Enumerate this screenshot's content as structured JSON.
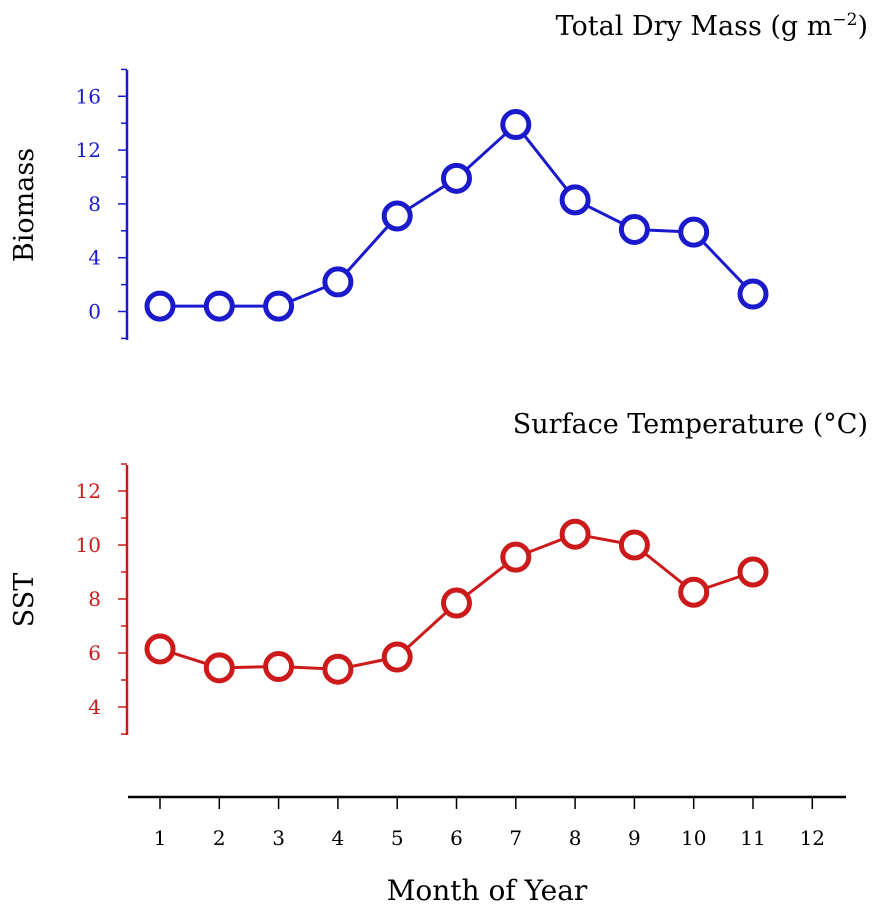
{
  "colors": {
    "biomass": "#1a1acc",
    "sst": "#cc1a1a",
    "axis": "#000000",
    "background": "#ffffff"
  },
  "chart_data": [
    {
      "type": "line",
      "title": "Total Dry Mass (g m−2)",
      "title_main": "Total Dry Mass (g m",
      "title_sup": "−2",
      "title_close": ")",
      "ylabel": "Biomass",
      "ylim": [
        -2,
        18
      ],
      "yticks": [
        0,
        4,
        8,
        12,
        16
      ],
      "xlim": [
        0.5,
        12.5
      ],
      "x": [
        1,
        2,
        3,
        4,
        5,
        6,
        7,
        8,
        9,
        10,
        11
      ],
      "series": [
        {
          "values": [
            0.4,
            0.4,
            0.4,
            2.2,
            7.1,
            9.9,
            13.9,
            8.3,
            6.1,
            5.9,
            1.3
          ]
        }
      ],
      "grid": false,
      "marker": "open-circle"
    },
    {
      "type": "line",
      "title": "Surface Temperature (°C)",
      "ylabel": "SST",
      "ylim": [
        3,
        13
      ],
      "yticks": [
        4,
        6,
        8,
        10,
        12
      ],
      "xlim": [
        0.5,
        12.5
      ],
      "x": [
        1,
        2,
        3,
        4,
        5,
        6,
        7,
        8,
        9,
        10,
        11
      ],
      "series": [
        {
          "values": [
            6.15,
            5.45,
            5.5,
            5.4,
            5.85,
            7.85,
            9.55,
            10.4,
            10.0,
            8.25,
            9.0
          ]
        }
      ],
      "grid": false,
      "marker": "open-circle"
    }
  ],
  "xaxis": {
    "label": "Month of Year",
    "ticks": [
      1,
      2,
      3,
      4,
      5,
      6,
      7,
      8,
      9,
      10,
      11,
      12
    ]
  }
}
